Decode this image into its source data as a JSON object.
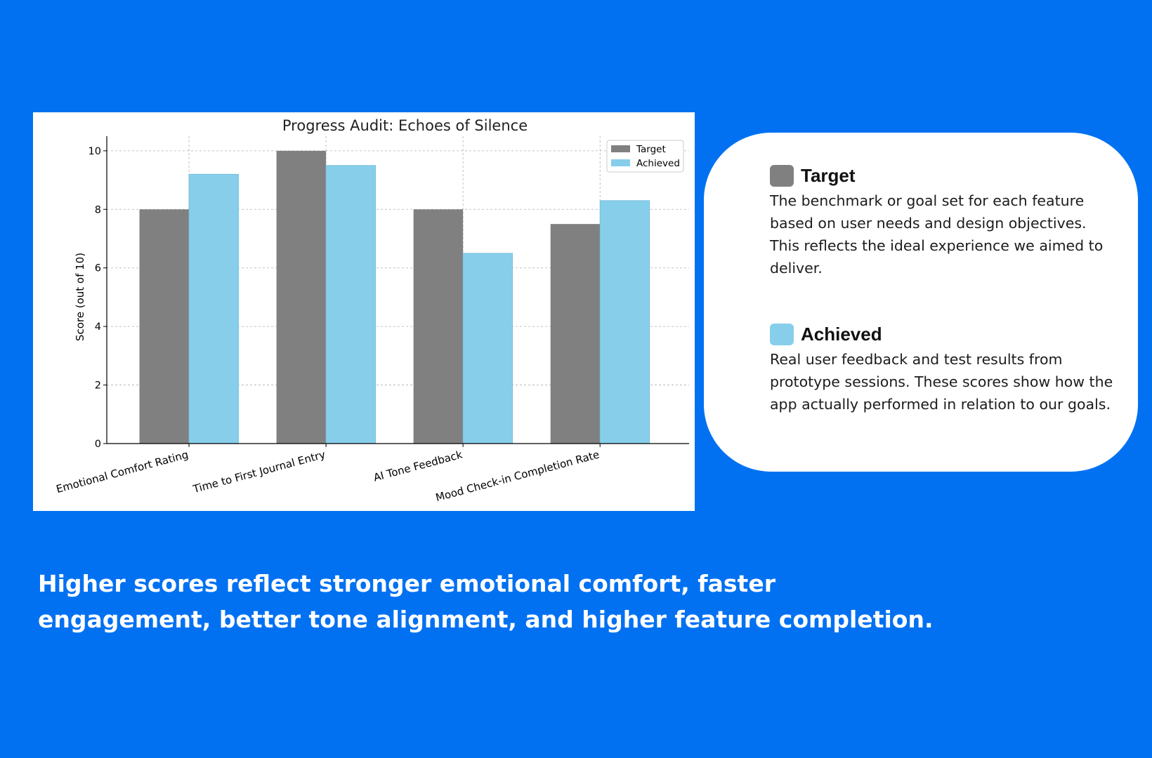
{
  "chart_data": {
    "type": "bar",
    "title": "Progress Audit: Echoes of Silence",
    "ylabel": "Score (out of 10)",
    "xlabel": "",
    "categories": [
      "Emotional Comfort Rating",
      "Time to First Journal Entry",
      "AI Tone Feedback",
      "Mood Check-in Completion Rate"
    ],
    "series": [
      {
        "name": "Target",
        "values": [
          8,
          10,
          8,
          7.5
        ],
        "color": "#808080"
      },
      {
        "name": "Achieved",
        "values": [
          9.2,
          9.5,
          6.5,
          8.3
        ],
        "color": "#87ceeb"
      }
    ],
    "ylim": [
      0,
      10.5
    ],
    "yticks": [
      0,
      2,
      4,
      6,
      8,
      10
    ],
    "grid": true,
    "legend_position": "top-right"
  },
  "legend_card": {
    "target": {
      "title": "Target",
      "color": "#808080",
      "description": "The benchmark or goal set for each feature based on user needs and design objectives. This reflects the ideal experience we aimed to deliver."
    },
    "achieved": {
      "title": "Achieved",
      "color": "#87ceeb",
      "description": "Real user feedback and test results from prototype sessions. These scores show how the app actually performed in relation to our goals."
    }
  },
  "footer": {
    "caption": "Higher scores reflect stronger emotional comfort, faster engagement, better tone alignment, and higher feature completion."
  },
  "colors": {
    "background": "#0171f2",
    "panel": "#ffffff"
  }
}
